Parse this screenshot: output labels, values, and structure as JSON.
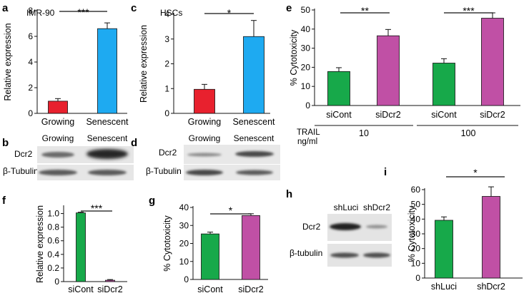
{
  "chart_data": [
    {
      "panel": "a",
      "type": "bar",
      "title": "IMR-90",
      "ylabel": "Relative expression",
      "categories": [
        "Growing",
        "Senescent"
      ],
      "values": [
        0.95,
        6.6
      ],
      "errors": [
        0.2,
        0.45
      ],
      "ylim": [
        0,
        8
      ],
      "yticks": [
        0,
        2,
        4,
        6,
        8
      ],
      "significance": "***",
      "colors": [
        "#e8212e",
        "#1eaaf1"
      ]
    },
    {
      "panel": "c",
      "type": "bar",
      "title": "HSCs",
      "ylabel": "Relative expression",
      "categories": [
        "Growing",
        "Senescent"
      ],
      "values": [
        0.97,
        3.1
      ],
      "errors": [
        0.2,
        0.65
      ],
      "ylim": [
        0,
        4
      ],
      "yticks": [
        0,
        1,
        2,
        3,
        4
      ],
      "significance": "*",
      "colors": [
        "#e8212e",
        "#1eaaf1"
      ]
    },
    {
      "panel": "e",
      "type": "bar",
      "ylabel": "% Cytotoxicity",
      "categories": [
        "siCont",
        "siDcr2",
        "siCont",
        "siDcr2"
      ],
      "groups": [
        "10",
        "100"
      ],
      "group_label": "TRAIL ng/ml",
      "values": [
        17.8,
        36.5,
        22.2,
        45.7
      ],
      "errors": [
        2.0,
        3.3,
        2.3,
        2.8
      ],
      "ylim": [
        0,
        50
      ],
      "yticks": [
        0,
        10,
        20,
        30,
        40,
        50
      ],
      "significance": [
        "**",
        "***"
      ],
      "colors": [
        "#17a94a",
        "#c050a5",
        "#17a94a",
        "#c050a5"
      ]
    },
    {
      "panel": "f",
      "type": "bar",
      "ylabel": "Relative expression",
      "categories": [
        "siCont",
        "siDcr2"
      ],
      "values": [
        1.01,
        0.02
      ],
      "errors": [
        0.01,
        0.01
      ],
      "ylim": [
        0,
        1.1
      ],
      "yticks": [
        "0",
        "0.2",
        "0.4",
        "0.6",
        "0.8",
        "1.0"
      ],
      "significance": "***",
      "colors": [
        "#17a94a",
        "#c050a5"
      ]
    },
    {
      "panel": "g",
      "type": "bar",
      "ylabel": "% Cytotoxicity",
      "categories": [
        "siCont",
        "siDcr2"
      ],
      "values": [
        25.3,
        35.5
      ],
      "errors": [
        1.0,
        1.0
      ],
      "ylim": [
        0,
        40
      ],
      "yticks": [
        0,
        10,
        20,
        30,
        40
      ],
      "significance": "*",
      "colors": [
        "#17a94a",
        "#c050a5"
      ]
    },
    {
      "panel": "i",
      "type": "bar",
      "ylabel": "% Cytotoxicity",
      "categories": [
        "shLuci",
        "shDcr2"
      ],
      "values": [
        39.2,
        55.4
      ],
      "errors": [
        2.3,
        6.5
      ],
      "ylim": [
        0,
        60
      ],
      "yticks": [
        0,
        10,
        20,
        30,
        40,
        50,
        60
      ],
      "significance": "*",
      "colors": [
        "#17a94a",
        "#c050a5"
      ]
    }
  ],
  "blots": {
    "b": {
      "letter": "b",
      "columns": [
        "Growing",
        "Senescent"
      ],
      "rows": [
        "Dcr2",
        "β-Tubulin"
      ]
    },
    "d": {
      "letter": "d",
      "columns": [
        "Growing",
        "Senescent"
      ],
      "rows": [
        "Dcr2",
        "β-Tubulin"
      ]
    },
    "h": {
      "letter": "h",
      "columns": [
        "shLuci",
        "shDcr2"
      ],
      "rows": [
        "Dcr2",
        "β-tubulin"
      ]
    }
  }
}
